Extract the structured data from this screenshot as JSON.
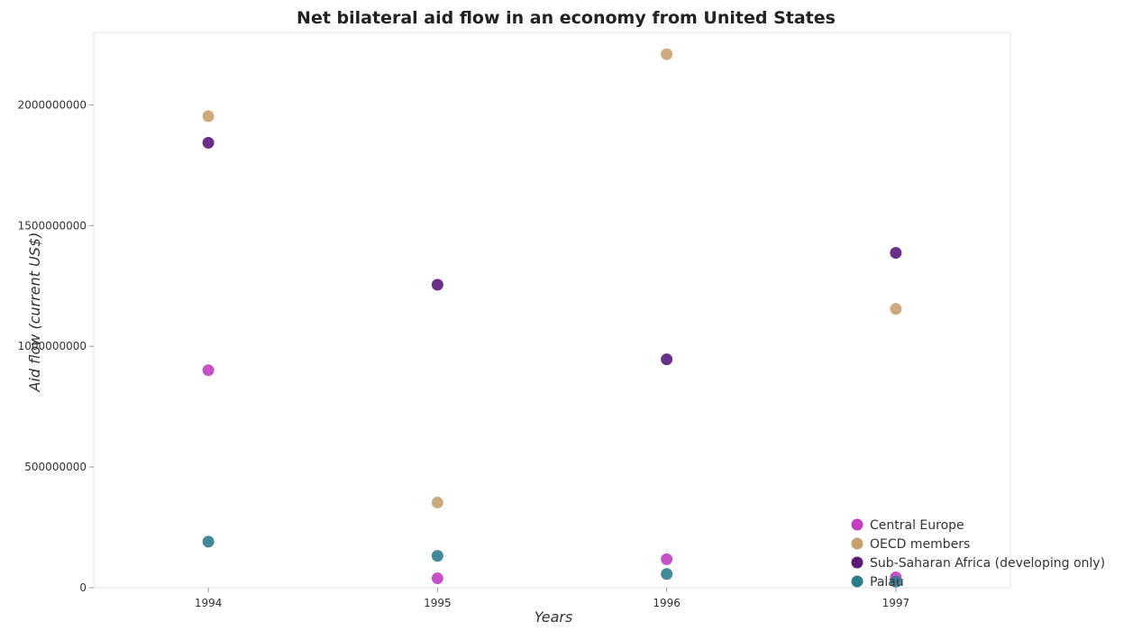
{
  "chart_data": {
    "type": "scatter",
    "title": "Net bilateral aid flow in an economy from United States",
    "xlabel": "Years",
    "ylabel": "Aid flow (current US$)",
    "categories": [
      "1994",
      "1995",
      "1996",
      "1997"
    ],
    "ylim": [
      0,
      2300000000
    ],
    "yticks": [
      0,
      500000000,
      1000000000,
      1500000000,
      2000000000
    ],
    "ytick_labels": [
      "0",
      "500000000",
      "1000000000",
      "1500000000",
      "2000000000"
    ],
    "grid": false,
    "legend_position": "bottom-right",
    "series": [
      {
        "name": "Central Europe",
        "color": "#c040c0",
        "values": [
          901000000,
          39000000,
          118000000,
          43000000
        ]
      },
      {
        "name": "OECD members",
        "color": "#c8a070",
        "values": [
          1953000000,
          353000000,
          2210000000,
          1155000000
        ]
      },
      {
        "name": "Sub-Saharan Africa (developing only)",
        "color": "#5a1a7a",
        "values": [
          1843000000,
          1255000000,
          946000000,
          1387000000
        ]
      },
      {
        "name": "Palau",
        "color": "#2e7d8c",
        "values": [
          191000000,
          132000000,
          57000000,
          25000000
        ]
      }
    ]
  }
}
